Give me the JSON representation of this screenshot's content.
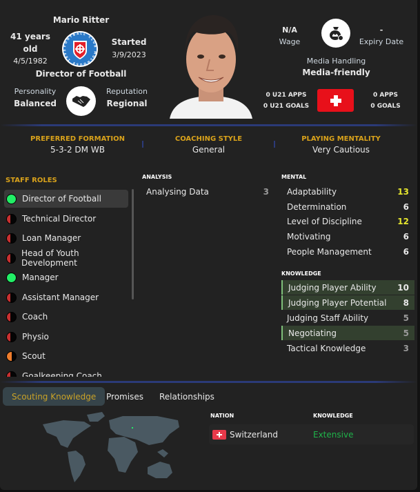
{
  "profile": {
    "name": "Mario Ritter",
    "age": "41 years old",
    "dob": "4/5/1982",
    "started_label": "Started",
    "started_date": "3/9/2023",
    "role": "Director of Football",
    "personality_label": "Personality",
    "personality": "Balanced",
    "reputation_label": "Reputation",
    "reputation": "Regional",
    "club_logo_text": "FOOTBALL CLUB MULHOUSE 1893"
  },
  "contract": {
    "wage": "N/A",
    "wage_label": "Wage",
    "expiry": "-",
    "expiry_label": "Expiry Date",
    "media_label": "Media Handling",
    "media": "Media-friendly",
    "u21_apps": "0 U21 APPS",
    "u21_goals": "0 U21 GOALS",
    "apps": "0 APPS",
    "goals": "0 GOALS",
    "nation_flag": "switzerland-flag"
  },
  "tactics": [
    {
      "label": "PREFERRED FORMATION",
      "value": "5-3-2 DM WB"
    },
    {
      "label": "COACHING STYLE",
      "value": "General"
    },
    {
      "label": "PLAYING MENTALITY",
      "value": "Very Cautious"
    }
  ],
  "staff_roles": {
    "title": "STAFF ROLES",
    "items": [
      {
        "label": "Director of Football",
        "rating": "green"
      },
      {
        "label": "Technical Director",
        "rating": "red"
      },
      {
        "label": "Loan Manager",
        "rating": "red"
      },
      {
        "label": "Head of Youth Development",
        "rating": "red"
      },
      {
        "label": "Manager",
        "rating": "green"
      },
      {
        "label": "Assistant Manager",
        "rating": "red"
      },
      {
        "label": "Coach",
        "rating": "red"
      },
      {
        "label": "Physio",
        "rating": "red"
      },
      {
        "label": "Scout",
        "rating": "orange"
      },
      {
        "label": "Goalkeeping Coach",
        "rating": "red"
      }
    ]
  },
  "analysis": {
    "title": "ANALYSIS",
    "items": [
      {
        "label": "Analysing Data",
        "value": "3"
      }
    ]
  },
  "mental": {
    "title": "MENTAL",
    "items": [
      {
        "label": "Adaptability",
        "value": "13"
      },
      {
        "label": "Determination",
        "value": "6"
      },
      {
        "label": "Level of Discipline",
        "value": "12"
      },
      {
        "label": "Motivating",
        "value": "6"
      },
      {
        "label": "People Management",
        "value": "6"
      }
    ]
  },
  "knowledge": {
    "title": "KNOWLEDGE",
    "items": [
      {
        "label": "Judging Player Ability",
        "value": "10"
      },
      {
        "label": "Judging Player Potential",
        "value": "8"
      },
      {
        "label": "Judging Staff Ability",
        "value": "5"
      },
      {
        "label": "Negotiating",
        "value": "5"
      },
      {
        "label": "Tactical Knowledge",
        "value": "3"
      }
    ]
  },
  "tabs": [
    "Scouting Knowledge",
    "Promises",
    "Relationships"
  ],
  "scouting": {
    "col_nation": "NATION",
    "col_knowledge": "KNOWLEDGE",
    "rows": [
      {
        "nation": "Switzerland",
        "knowledge": "Extensive"
      }
    ]
  },
  "colors": {
    "gold": "#d9a21b",
    "good": "#e6e62e",
    "green": "#22ee66",
    "extensive": "#1fb34a",
    "flag_red": "#e8101a"
  }
}
